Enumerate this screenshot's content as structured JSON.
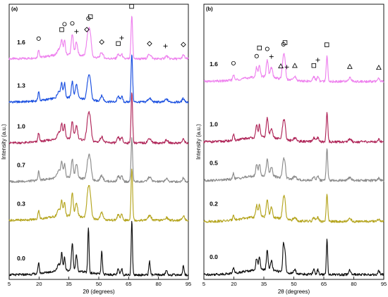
{
  "chart_data": [
    {
      "panel": "(a)",
      "type": "line",
      "xlabel": "2θ (degrees)",
      "ylabel": "Intensity (a.u.)",
      "xlim": [
        5,
        95
      ],
      "xticks": [
        5,
        20,
        35,
        50,
        65,
        80,
        95
      ],
      "xtick_labels": [
        "5",
        "20",
        "35",
        "50",
        "65",
        "80",
        "95"
      ],
      "show_yticks": false,
      "markers": [
        {
          "symbol": "circle",
          "x": 19.8
        },
        {
          "symbol": "square",
          "x": 31.4
        },
        {
          "symbol": "circle",
          "x": 32.8
        },
        {
          "symbol": "circle",
          "x": 36.7
        },
        {
          "symbol": "plus",
          "x": 38.8
        },
        {
          "symbol": "diamond",
          "x": 44.0
        },
        {
          "symbol": "circle",
          "x": 44.8
        },
        {
          "symbol": "square",
          "x": 45.8
        },
        {
          "symbol": "diamond",
          "x": 51.5
        },
        {
          "symbol": "square",
          "x": 59.8
        },
        {
          "symbol": "plus",
          "x": 61.5
        },
        {
          "symbol": "square",
          "x": 66.5
        },
        {
          "symbol": "diamond",
          "x": 75.5
        },
        {
          "symbol": "plus",
          "x": 83.5
        },
        {
          "symbol": "diamond",
          "x": 92.5
        }
      ],
      "series": [
        {
          "name": "1.6",
          "color": "#ee82ee",
          "offset": 4.75,
          "peaks": [
            [
              19.8,
              0.18,
              0.5
            ],
            [
              30.0,
              0.12,
              1.2
            ],
            [
              31.4,
              0.28,
              0.7
            ],
            [
              32.8,
              0.3,
              0.6
            ],
            [
              36.7,
              0.45,
              0.7
            ],
            [
              38.8,
              0.28,
              0.8
            ],
            [
              44.8,
              0.55,
              1.2
            ],
            [
              45.8,
              0.25,
              0.8
            ],
            [
              51.5,
              0.12,
              1.0
            ],
            [
              59.8,
              0.1,
              0.8
            ],
            [
              61.5,
              0.1,
              0.7
            ],
            [
              66.6,
              0.95,
              0.55
            ],
            [
              75.5,
              0.1,
              1.2
            ],
            [
              84.0,
              0.06,
              1.0
            ],
            [
              92.5,
              0.08,
              0.8
            ]
          ]
        },
        {
          "name": "1.3",
          "color": "#1a4fe0",
          "offset": 3.8,
          "peaks": [
            [
              19.8,
              0.2,
              0.5
            ],
            [
              30.0,
              0.15,
              1.2
            ],
            [
              31.4,
              0.3,
              0.6
            ],
            [
              32.8,
              0.32,
              0.6
            ],
            [
              36.7,
              0.35,
              0.7
            ],
            [
              38.8,
              0.3,
              0.8
            ],
            [
              44.8,
              0.45,
              1.1
            ],
            [
              45.8,
              0.25,
              0.8
            ],
            [
              51.5,
              0.12,
              1.0
            ],
            [
              59.8,
              0.12,
              0.8
            ],
            [
              61.5,
              0.12,
              0.7
            ],
            [
              66.6,
              1.05,
              0.55
            ],
            [
              75.5,
              0.08,
              1.2
            ],
            [
              84.0,
              0.06,
              1.0
            ],
            [
              92.5,
              0.08,
              0.8
            ]
          ]
        },
        {
          "name": "1.0",
          "color": "#b0275a",
          "offset": 2.9,
          "peaks": [
            [
              19.8,
              0.2,
              0.5
            ],
            [
              30.0,
              0.15,
              1.2
            ],
            [
              31.4,
              0.3,
              0.6
            ],
            [
              32.8,
              0.3,
              0.6
            ],
            [
              36.7,
              0.38,
              0.7
            ],
            [
              38.8,
              0.3,
              0.8
            ],
            [
              44.8,
              0.55,
              1.1
            ],
            [
              45.8,
              0.25,
              0.8
            ],
            [
              51.5,
              0.12,
              1.0
            ],
            [
              59.8,
              0.12,
              0.8
            ],
            [
              61.5,
              0.12,
              0.7
            ],
            [
              66.6,
              1.1,
              0.55
            ],
            [
              75.5,
              0.1,
              1.2
            ],
            [
              84.0,
              0.06,
              1.0
            ],
            [
              92.5,
              0.08,
              0.8
            ]
          ]
        },
        {
          "name": "0.7",
          "color": "#8c8c8c",
          "offset": 2.05,
          "peaks": [
            [
              19.8,
              0.2,
              0.5
            ],
            [
              30.0,
              0.15,
              1.2
            ],
            [
              31.4,
              0.3,
              0.6
            ],
            [
              32.8,
              0.3,
              0.6
            ],
            [
              36.7,
              0.4,
              0.7
            ],
            [
              38.8,
              0.3,
              0.8
            ],
            [
              44.8,
              0.45,
              1.1
            ],
            [
              45.8,
              0.25,
              0.8
            ],
            [
              51.5,
              0.12,
              1.0
            ],
            [
              59.8,
              0.12,
              0.8
            ],
            [
              61.5,
              0.12,
              0.7
            ],
            [
              66.6,
              0.95,
              0.55
            ],
            [
              75.5,
              0.1,
              1.2
            ],
            [
              84.0,
              0.06,
              1.0
            ],
            [
              92.5,
              0.08,
              0.8
            ]
          ]
        },
        {
          "name": "0.3",
          "color": "#b5a51f",
          "offset": 1.2,
          "peaks": [
            [
              19.8,
              0.2,
              0.5
            ],
            [
              30.0,
              0.15,
              1.2
            ],
            [
              31.4,
              0.3,
              0.6
            ],
            [
              32.8,
              0.3,
              0.6
            ],
            [
              36.7,
              0.5,
              0.7
            ],
            [
              38.8,
              0.3,
              0.8
            ],
            [
              44.8,
              0.65,
              1.1
            ],
            [
              45.8,
              0.25,
              0.8
            ],
            [
              51.5,
              0.15,
              1.0
            ],
            [
              59.8,
              0.12,
              0.8
            ],
            [
              61.5,
              0.12,
              0.7
            ],
            [
              66.6,
              1.15,
              0.55
            ],
            [
              75.5,
              0.1,
              1.2
            ],
            [
              84.0,
              0.06,
              1.0
            ],
            [
              92.5,
              0.1,
              0.8
            ]
          ]
        },
        {
          "name": "0.0",
          "color": "#111111",
          "offset": 0.0,
          "peaks": [
            [
              19.8,
              0.25,
              0.45
            ],
            [
              30.0,
              0.15,
              1.2
            ],
            [
              31.4,
              0.35,
              0.5
            ],
            [
              32.8,
              0.3,
              0.5
            ],
            [
              36.7,
              0.6,
              0.6
            ],
            [
              38.8,
              0.35,
              0.6
            ],
            [
              44.8,
              1.0,
              0.45
            ],
            [
              51.5,
              0.5,
              0.45
            ],
            [
              59.8,
              0.12,
              0.6
            ],
            [
              61.5,
              0.15,
              0.5
            ],
            [
              66.6,
              1.2,
              0.45
            ],
            [
              75.5,
              0.3,
              0.5
            ],
            [
              84.0,
              0.1,
              0.6
            ],
            [
              92.5,
              0.2,
              0.5
            ]
          ]
        }
      ]
    },
    {
      "panel": "(b)",
      "type": "line",
      "xlabel": "2θ (degrees)",
      "ylabel": "Intensity (a.u.)",
      "xlim": [
        5,
        95
      ],
      "xticks": [
        5,
        20,
        35,
        50,
        65,
        80,
        95
      ],
      "xtick_labels": [
        "5",
        "20",
        "35",
        "50",
        "65",
        "80",
        "95"
      ],
      "show_yticks": false,
      "markers": [
        {
          "symbol": "circle",
          "x": 19.8
        },
        {
          "symbol": "circle",
          "x": 31.4
        },
        {
          "symbol": "square",
          "x": 32.8
        },
        {
          "symbol": "circle",
          "x": 36.7
        },
        {
          "symbol": "plus",
          "x": 38.8
        },
        {
          "symbol": "triangle",
          "x": 43.5
        },
        {
          "symbol": "circle",
          "x": 44.8
        },
        {
          "symbol": "square",
          "x": 45.6
        },
        {
          "symbol": "plus",
          "x": 46.5
        },
        {
          "symbol": "triangle",
          "x": 50.5
        },
        {
          "symbol": "square",
          "x": 60.0
        },
        {
          "symbol": "plus",
          "x": 62.0
        },
        {
          "symbol": "square",
          "x": 66.5
        },
        {
          "symbol": "triangle",
          "x": 78.0
        },
        {
          "symbol": "triangle",
          "x": 92.5
        }
      ],
      "series": [
        {
          "name": "1.6",
          "color": "#ee82ee",
          "offset": 4.0,
          "peaks": [
            [
              19.8,
              0.12,
              0.5
            ],
            [
              31.4,
              0.2,
              0.6
            ],
            [
              32.8,
              0.25,
              0.6
            ],
            [
              36.7,
              0.35,
              0.7
            ],
            [
              38.8,
              0.2,
              0.8
            ],
            [
              44.8,
              0.45,
              0.8
            ],
            [
              45.6,
              0.25,
              0.6
            ],
            [
              50.5,
              0.08,
              1.0
            ],
            [
              60.0,
              0.1,
              0.8
            ],
            [
              62.0,
              0.1,
              0.7
            ],
            [
              66.6,
              0.55,
              0.55
            ],
            [
              78.0,
              0.08,
              1.0
            ],
            [
              92.5,
              0.06,
              0.8
            ]
          ]
        },
        {
          "name": "1.0",
          "color": "#b0275a",
          "offset": 2.75,
          "peaks": [
            [
              19.8,
              0.12,
              0.5
            ],
            [
              31.4,
              0.25,
              0.6
            ],
            [
              32.8,
              0.25,
              0.6
            ],
            [
              36.7,
              0.4,
              0.7
            ],
            [
              38.8,
              0.2,
              0.8
            ],
            [
              44.8,
              0.35,
              0.8
            ],
            [
              45.6,
              0.2,
              0.6
            ],
            [
              50.5,
              0.06,
              1.0
            ],
            [
              60.0,
              0.08,
              0.8
            ],
            [
              62.0,
              0.08,
              0.7
            ],
            [
              66.6,
              0.6,
              0.55
            ],
            [
              78.0,
              0.06,
              1.0
            ],
            [
              92.5,
              0.05,
              0.8
            ]
          ]
        },
        {
          "name": "0.5",
          "color": "#8c8c8c",
          "offset": 1.95,
          "peaks": [
            [
              19.8,
              0.12,
              0.5
            ],
            [
              31.4,
              0.25,
              0.6
            ],
            [
              32.8,
              0.25,
              0.6
            ],
            [
              36.7,
              0.35,
              0.7
            ],
            [
              38.8,
              0.2,
              0.8
            ],
            [
              44.8,
              0.35,
              0.8
            ],
            [
              45.6,
              0.2,
              0.6
            ],
            [
              50.5,
              0.06,
              1.0
            ],
            [
              60.0,
              0.08,
              0.8
            ],
            [
              62.0,
              0.08,
              0.7
            ],
            [
              66.6,
              0.65,
              0.55
            ],
            [
              78.0,
              0.06,
              1.0
            ],
            [
              92.5,
              0.05,
              0.8
            ]
          ]
        },
        {
          "name": "0.2",
          "color": "#b5a51f",
          "offset": 1.1,
          "peaks": [
            [
              19.8,
              0.12,
              0.5
            ],
            [
              31.4,
              0.25,
              0.6
            ],
            [
              32.8,
              0.25,
              0.6
            ],
            [
              36.7,
              0.35,
              0.7
            ],
            [
              38.8,
              0.2,
              0.8
            ],
            [
              44.8,
              0.4,
              0.8
            ],
            [
              45.6,
              0.25,
              0.6
            ],
            [
              50.5,
              0.06,
              1.0
            ],
            [
              60.0,
              0.08,
              0.8
            ],
            [
              62.0,
              0.08,
              0.7
            ],
            [
              66.6,
              0.55,
              0.55
            ],
            [
              78.0,
              0.06,
              1.0
            ],
            [
              92.5,
              0.05,
              0.8
            ]
          ]
        },
        {
          "name": "0.0",
          "color": "#111111",
          "offset": 0.0,
          "peaks": [
            [
              19.8,
              0.12,
              0.5
            ],
            [
              31.4,
              0.25,
              0.6
            ],
            [
              32.8,
              0.25,
              0.6
            ],
            [
              36.7,
              0.4,
              0.6
            ],
            [
              38.8,
              0.2,
              0.7
            ],
            [
              44.8,
              0.6,
              0.5
            ],
            [
              45.6,
              0.4,
              0.5
            ],
            [
              50.5,
              0.08,
              0.8
            ],
            [
              60.0,
              0.1,
              0.7
            ],
            [
              62.0,
              0.1,
              0.6
            ],
            [
              66.6,
              0.75,
              0.45
            ],
            [
              78.0,
              0.1,
              0.7
            ],
            [
              92.5,
              0.08,
              0.6
            ]
          ]
        }
      ]
    }
  ]
}
